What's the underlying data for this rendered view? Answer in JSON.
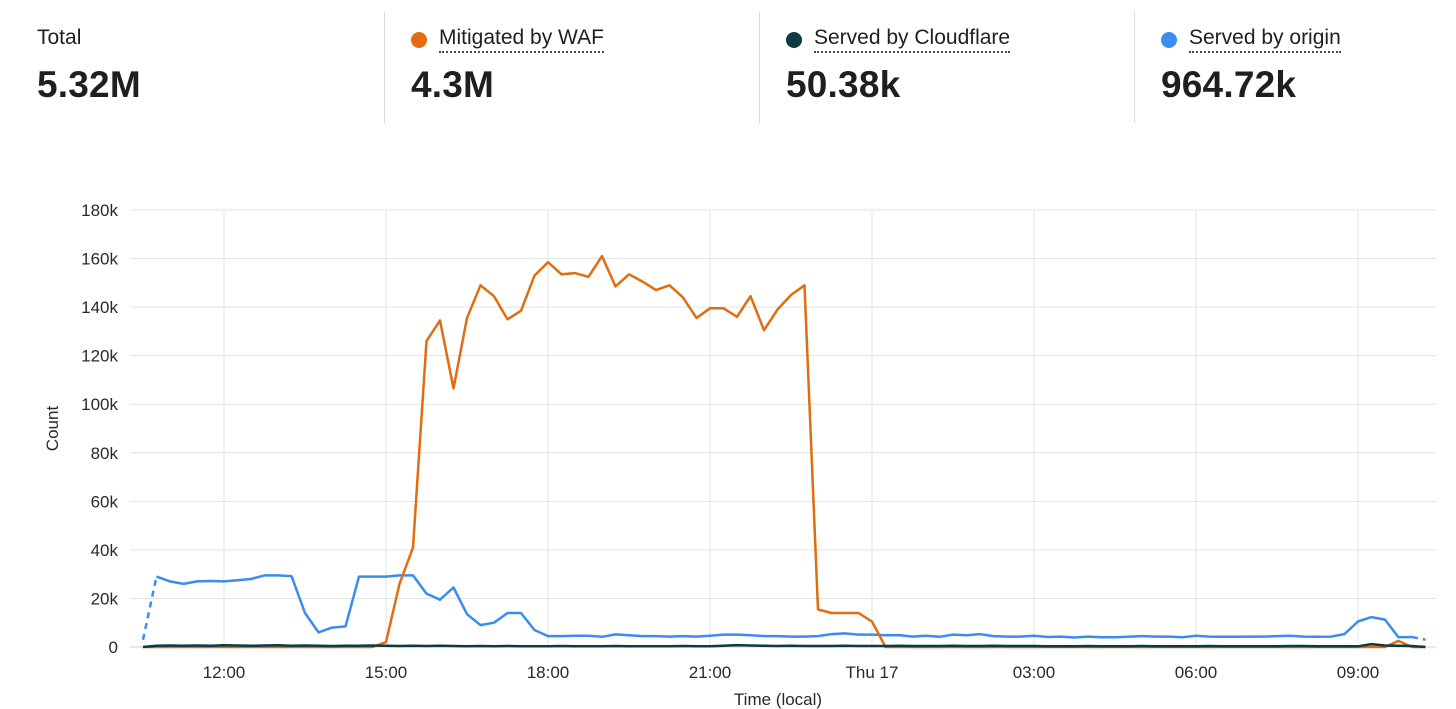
{
  "stats": [
    {
      "label": "Total",
      "value": "5.32M"
    },
    {
      "label": "Mitigated by WAF",
      "value": "4.3M",
      "color": "#e06d10"
    },
    {
      "label": "Served by Cloudflare",
      "value": "50.38k",
      "color": "#0d3b44"
    },
    {
      "label": "Served by origin",
      "value": "964.72k",
      "color": "#3b8ced"
    }
  ],
  "chart_data": {
    "type": "line",
    "xlabel": "Time (local)",
    "ylabel": "Count",
    "ylim": [
      0,
      180000
    ],
    "x_start": "10:30",
    "x_step_minutes": 15,
    "yticks": [
      0,
      20000,
      40000,
      60000,
      80000,
      100000,
      120000,
      140000,
      160000,
      180000
    ],
    "ytick_labels": [
      "0",
      "20k",
      "40k",
      "60k",
      "80k",
      "100k",
      "120k",
      "140k",
      "160k",
      "180k"
    ],
    "xticks": [
      {
        "index": 6,
        "label": "12:00"
      },
      {
        "index": 18,
        "label": "15:00"
      },
      {
        "index": 30,
        "label": "18:00"
      },
      {
        "index": 42,
        "label": "21:00"
      },
      {
        "index": 54,
        "label": "Thu 17"
      },
      {
        "index": 66,
        "label": "03:00"
      },
      {
        "index": 78,
        "label": "06:00"
      },
      {
        "index": 90,
        "label": "09:00"
      }
    ],
    "grid": true,
    "series": [
      {
        "name": "Served by origin",
        "color": "#3b8ced",
        "dashed_edges": true,
        "values": [
          3000,
          29000,
          27000,
          26000,
          27000,
          27200,
          27000,
          27500,
          28000,
          29500,
          29500,
          29200,
          14000,
          6000,
          8000,
          8500,
          29000,
          29000,
          29000,
          29500,
          29500,
          22000,
          19500,
          24500,
          13500,
          9000,
          10000,
          14000,
          14000,
          7000,
          4500,
          4500,
          4600,
          4600,
          4200,
          5200,
          4800,
          4500,
          4500,
          4300,
          4500,
          4300,
          4600,
          5100,
          5100,
          4800,
          4500,
          4500,
          4300,
          4300,
          4500,
          5300,
          5600,
          5100,
          5100,
          4800,
          4900,
          4300,
          4600,
          4200,
          5100,
          4800,
          5300,
          4500,
          4300,
          4300,
          4600,
          4100,
          4300,
          3900,
          4300,
          4000,
          4000,
          4200,
          4500,
          4300,
          4300,
          4000,
          4600,
          4300,
          4200,
          4200,
          4300,
          4300,
          4500,
          4600,
          4300,
          4200,
          4300,
          5300,
          10500,
          12300,
          11300,
          4000,
          4100,
          3000
        ]
      },
      {
        "name": "Mitigated by WAF",
        "color": "#e06d10",
        "dashed_edges": false,
        "values": [
          0,
          0,
          0,
          0,
          0,
          0,
          0,
          0,
          0,
          0,
          0,
          0,
          0,
          0,
          0,
          0,
          0,
          0,
          2000,
          26000,
          41000,
          126000,
          134500,
          106500,
          135500,
          149000,
          144500,
          135000,
          138500,
          153000,
          158500,
          153500,
          154000,
          152500,
          161000,
          148500,
          153500,
          150500,
          147000,
          149000,
          144000,
          135500,
          139500,
          139500,
          136000,
          144500,
          130500,
          139000,
          145000,
          149000,
          15500,
          14000,
          14000,
          14000,
          10500,
          0,
          0,
          0,
          0,
          0,
          0,
          0,
          0,
          0,
          0,
          0,
          0,
          0,
          0,
          0,
          0,
          0,
          0,
          0,
          0,
          0,
          0,
          0,
          0,
          0,
          0,
          0,
          0,
          0,
          0,
          0,
          0,
          0,
          0,
          0,
          0,
          0,
          0,
          2500,
          0,
          0
        ]
      },
      {
        "name": "Served by Cloudflare",
        "color": "#0d3b44",
        "dashed_edges": false,
        "values": [
          0,
          500,
          600,
          500,
          600,
          500,
          700,
          600,
          500,
          600,
          700,
          500,
          600,
          500,
          400,
          500,
          500,
          600,
          500,
          400,
          500,
          400,
          500,
          400,
          300,
          400,
          300,
          400,
          300,
          300,
          300,
          400,
          300,
          300,
          300,
          400,
          300,
          300,
          300,
          300,
          400,
          300,
          300,
          500,
          800,
          600,
          500,
          400,
          500,
          400,
          400,
          400,
          500,
          400,
          400,
          400,
          500,
          400,
          400,
          400,
          500,
          400,
          400,
          500,
          400,
          400,
          400,
          300,
          300,
          300,
          400,
          300,
          300,
          300,
          400,
          300,
          300,
          300,
          300,
          400,
          300,
          300,
          300,
          300,
          300,
          400,
          400,
          300,
          300,
          300,
          300,
          1200,
          600,
          500,
          400,
          0
        ]
      }
    ]
  }
}
